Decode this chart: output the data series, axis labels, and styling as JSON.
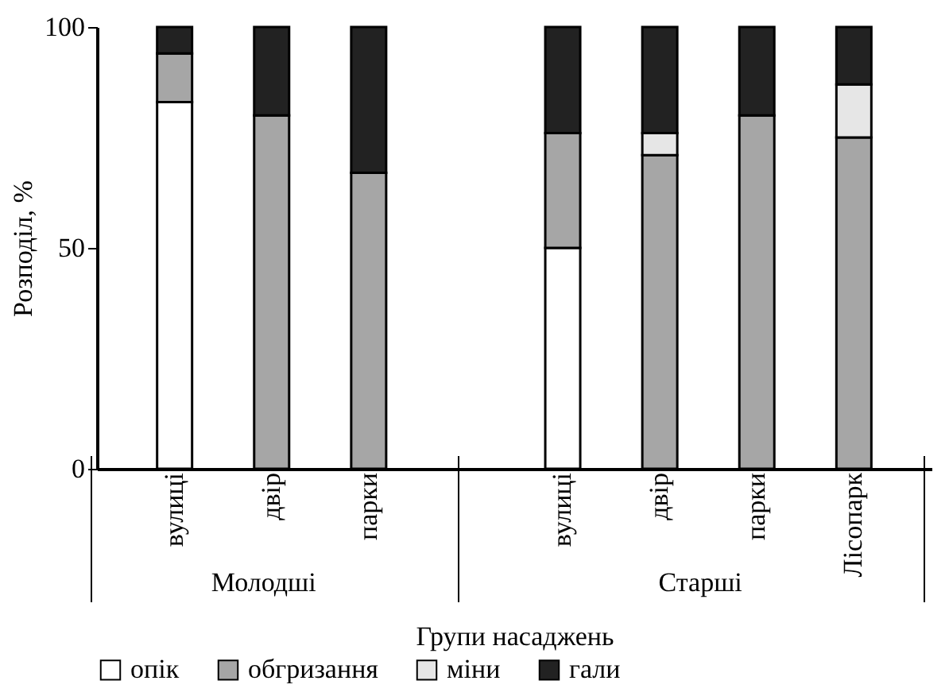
{
  "chart_data": {
    "type": "bar",
    "stacked": true,
    "categories": [
      "вулиці",
      "двір",
      "парки",
      null,
      "вулиці",
      "двір",
      "парки",
      "Лісопарк"
    ],
    "series": [
      {
        "name": "опік",
        "color": "#ffffff",
        "values": [
          83,
          null,
          null,
          null,
          50,
          null,
          null,
          null
        ]
      },
      {
        "name": "обгризання",
        "color": "#a6a6a6",
        "values": [
          11,
          80,
          67,
          null,
          26,
          71,
          80,
          75
        ]
      },
      {
        "name": "міни",
        "color": "#e6e6e6",
        "values": [
          null,
          null,
          null,
          null,
          null,
          5,
          null,
          12
        ]
      },
      {
        "name": "гали",
        "color": "#222222",
        "values": [
          6,
          20,
          33,
          null,
          24,
          24,
          20,
          13
        ]
      }
    ],
    "ylim": [
      0,
      100
    ],
    "yticks": [
      0,
      50,
      100
    ],
    "grid": false,
    "legend": "bottom",
    "xlabel": "Групи насаджень",
    "ylabel": "Розподіл, %",
    "annotations": [
      "Молодші",
      "Старші"
    ]
  }
}
